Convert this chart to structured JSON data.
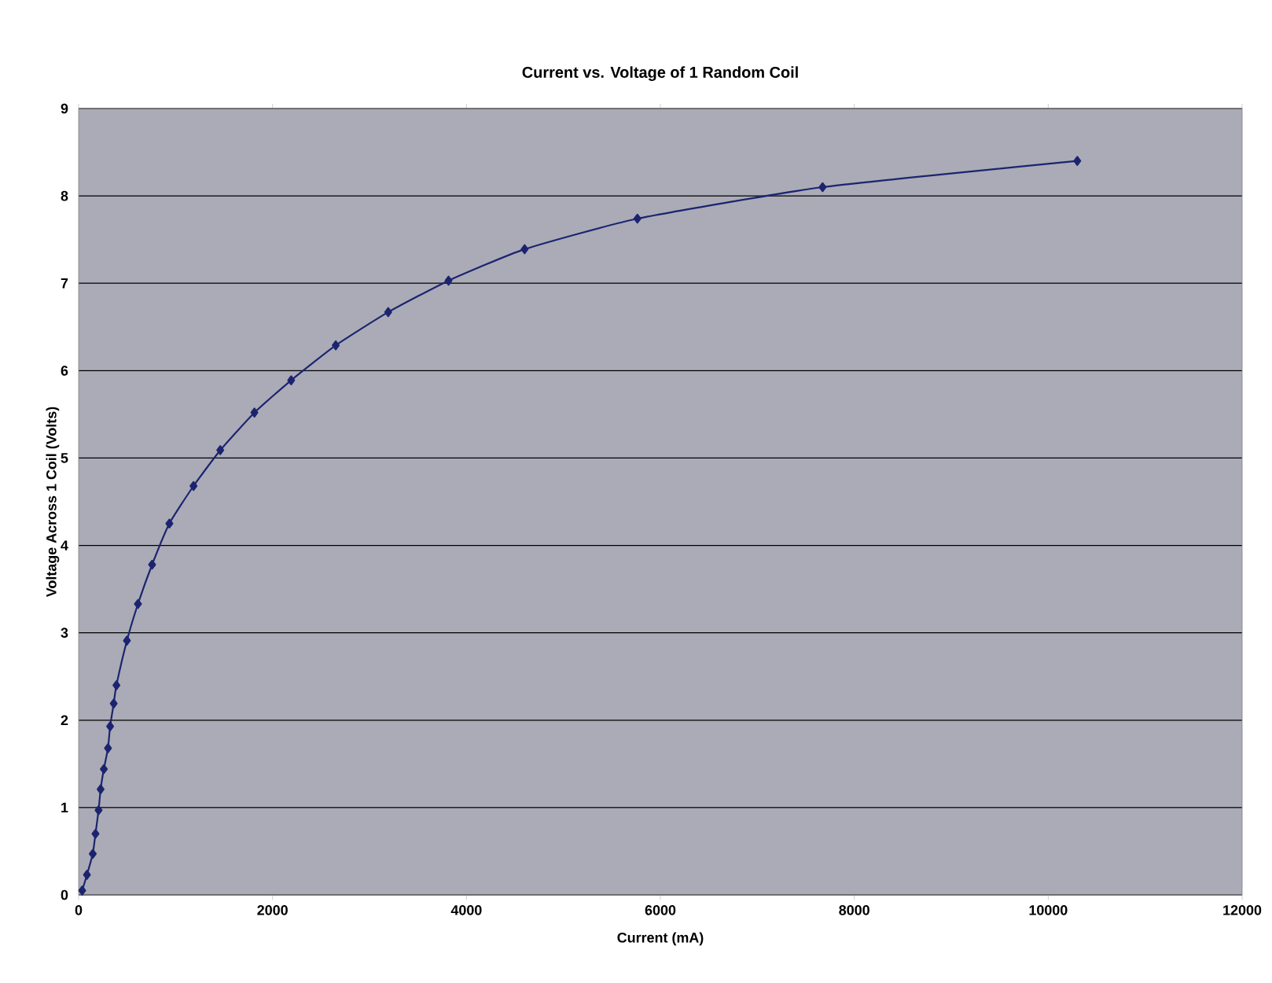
{
  "chart_data": {
    "type": "line",
    "title": "Current vs. Voltage of 1 Random Coil",
    "xlabel": "Current (mA)",
    "ylabel": "Voltage Across 1 Coil (Volts)",
    "x": [
      37,
      86,
      146,
      174,
      206,
      227,
      260,
      303,
      325,
      362,
      390,
      498,
      612,
      758,
      936,
      1185,
      1461,
      1813,
      2192,
      2652,
      3193,
      3815,
      4600,
      5763,
      7673,
      10300
    ],
    "series": [
      {
        "color": "#1c2470",
        "values": [
          0.05,
          0.23,
          0.47,
          0.7,
          0.97,
          1.21,
          1.44,
          1.68,
          1.93,
          2.19,
          2.4,
          2.91,
          3.33,
          3.78,
          4.25,
          4.68,
          5.09,
          5.52,
          5.89,
          6.29,
          6.67,
          7.03,
          7.39,
          7.74,
          8.1,
          8.4
        ]
      }
    ],
    "xlim": [
      0,
      12000
    ],
    "ylim": [
      0,
      9
    ],
    "xticks": [
      0,
      2000,
      4000,
      6000,
      8000,
      10000,
      12000
    ],
    "yticks": [
      0,
      1,
      2,
      3,
      4,
      5,
      6,
      7,
      8,
      9
    ],
    "grid": "y",
    "marker": "diamond",
    "line_style": "solid"
  }
}
